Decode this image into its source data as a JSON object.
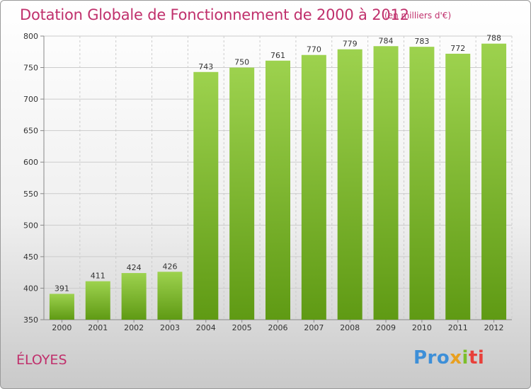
{
  "header": {
    "title": "Dotation Globale de Fonctionnement de 2000 à 2012",
    "unit": "(en milliers d'€)"
  },
  "footer": {
    "town": "ÉLOYES",
    "logo": {
      "part1": "Pro",
      "part2": "x",
      "part3": "i",
      "part4": "ti"
    }
  },
  "colors": {
    "title": "#c0306c",
    "bar_top": "#9dd24e",
    "bar_bottom": "#5f9a14",
    "grid": "#cccccc"
  },
  "chart_data": {
    "type": "bar",
    "title": "Dotation Globale de Fonctionnement de 2000 à 2012",
    "subtitle": "(en milliers d'€)",
    "xlabel": "",
    "ylabel": "",
    "categories": [
      "2000",
      "2001",
      "2002",
      "2003",
      "2004",
      "2005",
      "2006",
      "2007",
      "2008",
      "2009",
      "2010",
      "2011",
      "2012"
    ],
    "values": [
      391,
      411,
      424,
      426,
      743,
      750,
      761,
      770,
      779,
      784,
      783,
      772,
      788
    ],
    "ylim": [
      350,
      800
    ],
    "yticks": [
      350,
      400,
      450,
      500,
      550,
      600,
      650,
      700,
      750,
      800
    ],
    "grid": true,
    "legend": "none"
  }
}
